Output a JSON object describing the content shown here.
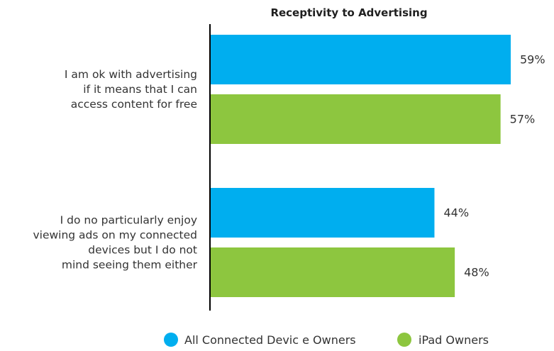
{
  "chart_data": {
    "type": "bar",
    "orientation": "horizontal",
    "title": "Receptivity to Advertising",
    "categories": [
      [
        "I am ok with advertising",
        "if it means that I can",
        "access content for free"
      ],
      [
        "I do no particularly enjoy",
        "viewing ads on my connected",
        "devices but I do not",
        "mind seeing them either"
      ]
    ],
    "series": [
      {
        "name": "All Connected Devic e Owners",
        "values": [
          59,
          44
        ],
        "labels": [
          "59%",
          "44%"
        ],
        "color": "#00aeef"
      },
      {
        "name": "iPad Owners",
        "values": [
          57,
          48
        ],
        "labels": [
          "57%",
          "48%"
        ],
        "color": "#8dc63f"
      }
    ],
    "xlim": [
      0,
      59
    ],
    "grid": false,
    "legend_position": "bottom"
  }
}
